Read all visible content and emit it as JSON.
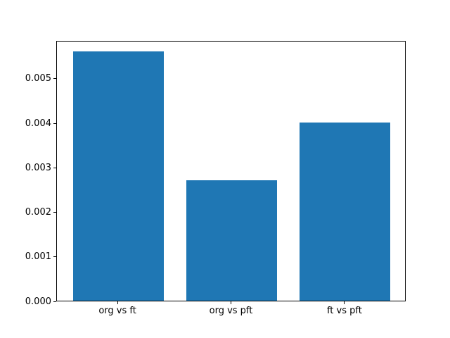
{
  "chart_data": {
    "type": "bar",
    "categories": [
      "org vs ft",
      "org vs pft",
      "ft vs pft"
    ],
    "values": [
      0.0056,
      0.0027,
      0.004
    ],
    "title": "",
    "xlabel": "",
    "ylabel": "",
    "ylim": [
      0,
      0.00585
    ],
    "yticks": [
      0.0,
      0.001,
      0.002,
      0.003,
      0.004,
      0.005
    ],
    "ytick_labels": [
      "0.000",
      "0.001",
      "0.002",
      "0.003",
      "0.004",
      "0.005"
    ],
    "xlim": [
      -0.54,
      2.54
    ],
    "bar_width_data_units": 0.8,
    "bar_color": "#1f77b4",
    "grid": false,
    "legend": null
  }
}
